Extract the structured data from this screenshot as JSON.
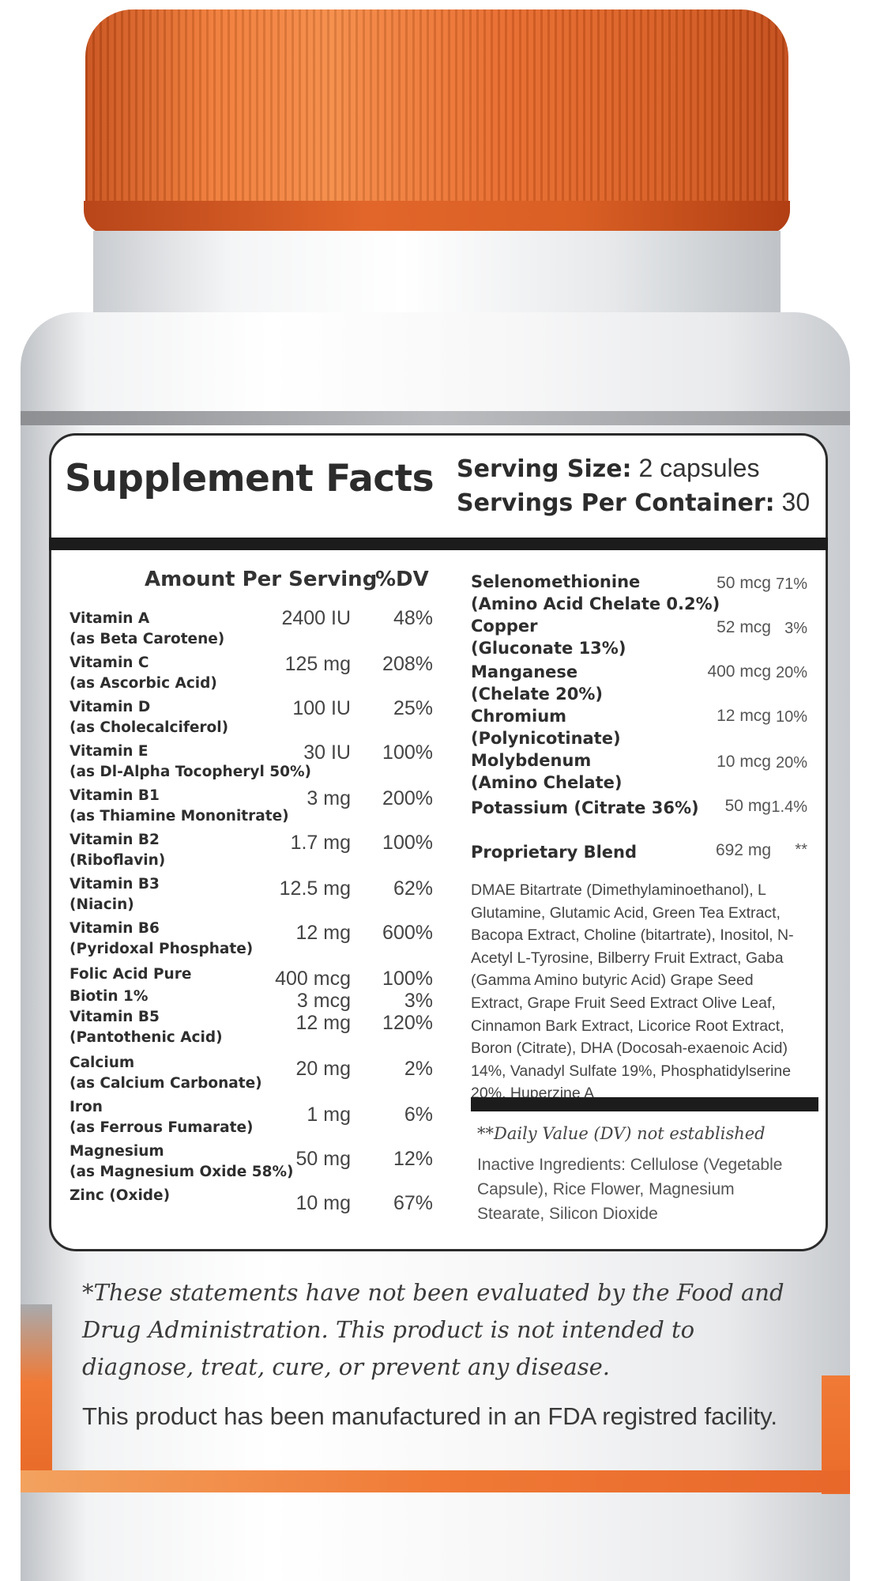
{
  "header": {
    "title": "Supplement Facts",
    "serving_size_label": "Serving Size:",
    "serving_size_value": "2 capsules",
    "servings_per_container_label": "Servings Per Container:",
    "servings_per_container_value": "30",
    "amount_header": "Amount Per Serving",
    "dv_header": "%DV"
  },
  "left_nutrients": [
    {
      "name": "Vitamin A",
      "sub": "(as Beta Carotene)",
      "amount": "2400 IU",
      "dv": "48%"
    },
    {
      "name": "Vitamin C",
      "sub": "(as Ascorbic Acid)",
      "amount": "125 mg",
      "dv": "208%"
    },
    {
      "name": "Vitamin D",
      "sub": "(as Cholecalciferol)",
      "amount": "100 IU",
      "dv": "25%"
    },
    {
      "name": "Vitamin E",
      "sub": "(as Dl-Alpha Tocopheryl 50%)",
      "amount": "30 IU",
      "dv": "100%"
    },
    {
      "name": "Vitamin B1",
      "sub": "(as Thiamine Mononitrate)",
      "amount": "3 mg",
      "dv": "200%"
    },
    {
      "name": "Vitamin B2",
      "sub": "(Riboflavin)",
      "amount": "1.7 mg",
      "dv": "100%"
    },
    {
      "name": "Vitamin B3",
      "sub": "(Niacin)",
      "amount": "12.5 mg",
      "dv": "62%"
    },
    {
      "name": "Vitamin B6",
      "sub": "(Pyridoxal Phosphate)",
      "amount": "12 mg",
      "dv": "600%"
    },
    {
      "name": "Folic Acid Pure",
      "sub": "",
      "amount": "400 mcg",
      "dv": "100%"
    },
    {
      "name": "Biotin 1%",
      "sub": "",
      "amount": "3 mcg",
      "dv": "3%"
    },
    {
      "name": "Vitamin B5",
      "sub": "(Pantothenic Acid)",
      "amount": "12 mg",
      "dv": "120%"
    },
    {
      "name": "Calcium",
      "sub": "(as Calcium Carbonate)",
      "amount": "20 mg",
      "dv": "2%"
    },
    {
      "name": "Iron",
      "sub": "(as Ferrous Fumarate)",
      "amount": "1 mg",
      "dv": "6%"
    },
    {
      "name": "Magnesium",
      "sub": "(as Magnesium Oxide 58%)",
      "amount": "50 mg",
      "dv": "12%"
    },
    {
      "name": "Zinc (Oxide)",
      "sub": "",
      "amount": "10 mg",
      "dv": "67%"
    }
  ],
  "right_nutrients": [
    {
      "name": "Selenomethionine",
      "sub": "(Amino Acid Chelate 0.2%)",
      "amount": "50 mcg",
      "dv": "71%"
    },
    {
      "name": "Copper",
      "sub": "(Gluconate 13%)",
      "amount": "52 mcg",
      "dv": "3%"
    },
    {
      "name": "Manganese",
      "sub": "(Chelate 20%)",
      "amount": "400 mcg",
      "dv": "20%"
    },
    {
      "name": "Chromium",
      "sub": "(Polynicotinate)",
      "amount": "12 mcg",
      "dv": "10%"
    },
    {
      "name": "Molybdenum",
      "sub": "(Amino Chelate)",
      "amount": "10 mcg",
      "dv": "20%"
    },
    {
      "name": "Potassium (Citrate 36%)",
      "sub": "",
      "amount": "50 mg",
      "dv": "1.4%"
    }
  ],
  "blend": {
    "name": "Proprietary Blend",
    "amount": "692 mg",
    "dv": "**",
    "ingredients": "DMAE Bitartrate (Dimethylaminoethanol), L Glutamine, Glutamic Acid, Green Tea Extract, Bacopa Extract, Choline (bitartrate), Inositol, N-Acetyl L-Tyrosine, Bilberry Fruit Extract, Gaba (Gamma Amino butyric Acid) Grape Seed Extract, Grape Fruit Seed Extract Olive Leaf, Cinnamon Bark Extract, Licorice Root Extract, Boron (Citrate), DHA (Docosah-exaenoic Acid) 14%, Vanadyl Sulfate 19%, Phosphatidylserine 20%, Huperzine A"
  },
  "notes": {
    "dv_not_established": "**Daily Value (DV) not established",
    "inactive": "Inactive Ingredients: Cellulose (Vegetable Capsule), Rice Flower, Magnesium Stearate, Silicon Dioxide"
  },
  "disclaimer": "*These statements have not been evaluated by the Food and Drug Administration. This product is not intended to diagnose, treat, cure, or prevent any disease.",
  "facility": "This product has been manufactured in an FDA registred facility.",
  "colors": {
    "cap": "#f07a36",
    "accent_stripe": "#e8672a",
    "rule": "#1c1c1c"
  }
}
